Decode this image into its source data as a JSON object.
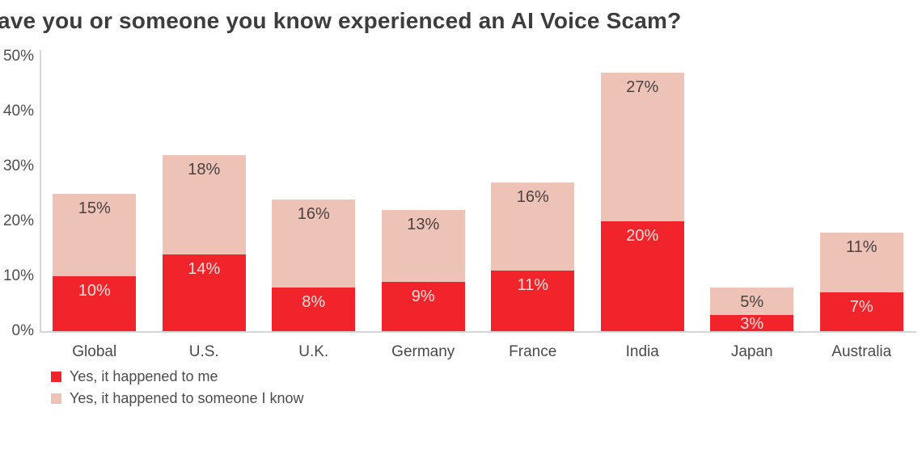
{
  "title": "ave you or someone you know experienced an AI Voice Scam?",
  "chart_data": {
    "type": "bar",
    "stacked": true,
    "title": "ave you or someone you know experienced an AI Voice Scam?",
    "categories": [
      "Global",
      "U.S.",
      "U.K.",
      "Germany",
      "France",
      "India",
      "Japan",
      "Australia"
    ],
    "series": [
      {
        "name": "Yes, it happened to me",
        "color": "#f1232b",
        "label_color": "#fbdfd9",
        "values": [
          10,
          14,
          8,
          9,
          11,
          20,
          3,
          7
        ]
      },
      {
        "name": "Yes, it happened to someone I know",
        "color": "#edc3b8",
        "label_color": "#4b413e",
        "values": [
          15,
          18,
          16,
          13,
          16,
          27,
          5,
          11
        ]
      }
    ],
    "value_suffix": "%",
    "ylim": [
      0,
      50
    ],
    "yticks": [
      "50%",
      "40%",
      "30%",
      "20%",
      "10%",
      "0%"
    ],
    "grid": false,
    "legend_position": "bottom-left"
  },
  "colors": {
    "background": "#ffffff",
    "title_text": "#3d3d3d",
    "tick_text": "#4d4d4d",
    "category_text": "#4a4a4a",
    "legend_text": "#4c4c4c",
    "axis_line": "#d6d6d6"
  }
}
